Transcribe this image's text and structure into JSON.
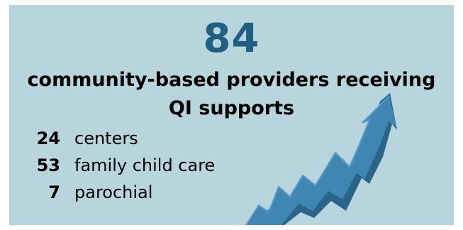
{
  "stat": {
    "number": "84",
    "headline_line1": "community-based providers receiving",
    "headline_line2": "QI supports"
  },
  "breakdown": [
    {
      "count": "24",
      "label": "centers"
    },
    {
      "count": "53",
      "label": "family child care"
    },
    {
      "count": "7",
      "label": "parochial"
    }
  ],
  "colors": {
    "background": "#b8d5de",
    "number": "#1f5f82",
    "arrow_front": "#3f86b3",
    "arrow_side": "#2a6489"
  },
  "icons": {
    "arrow": "trending-up-arrow-icon"
  }
}
